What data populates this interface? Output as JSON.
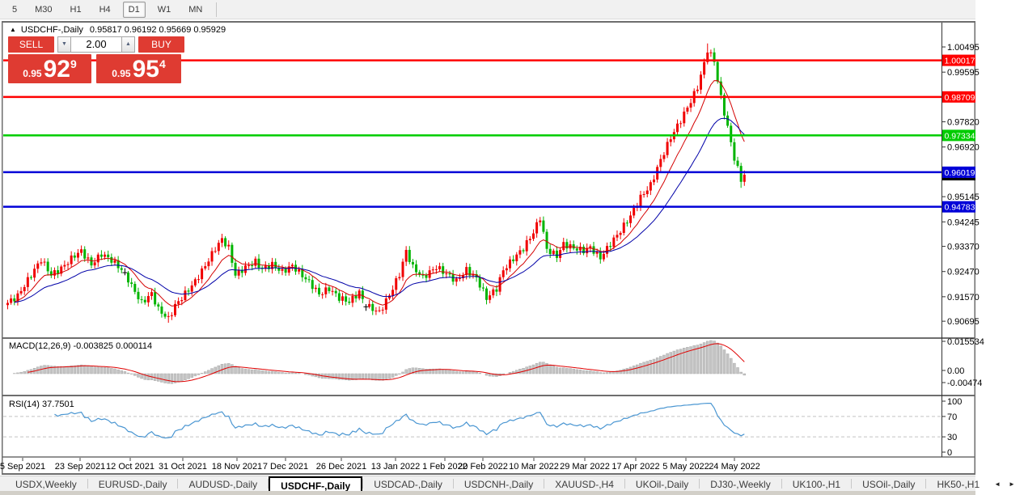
{
  "toolbar": {
    "timeframes": [
      "5",
      "M30",
      "H1",
      "H4",
      "D1",
      "W1",
      "MN"
    ],
    "active": "D1"
  },
  "chart": {
    "title": {
      "arrow": "▲",
      "symbol": "USDCHF-,Daily",
      "ohlc": "0.95817 0.96192 0.95669 0.95929"
    },
    "trade_panel": {
      "sell_label": "SELL",
      "buy_label": "BUY",
      "volume": "2.00",
      "spin_down_icon": "▼",
      "spin_up_icon": "▲",
      "sell_price": {
        "prefix": "0.95",
        "big": "92",
        "sup": "9"
      },
      "buy_price": {
        "prefix": "0.95",
        "big": "95",
        "sup": "4"
      }
    },
    "price_axis": {
      "ticks": [
        {
          "label": "1.00495",
          "value": 1.00495
        },
        {
          "label": "0.99595",
          "value": 0.99595
        },
        {
          "label": "0.97820",
          "value": 0.9782
        },
        {
          "label": "0.96920",
          "value": 0.9692
        },
        {
          "label": "0.95145",
          "value": 0.95145
        },
        {
          "label": "0.94245",
          "value": 0.94245
        },
        {
          "label": "0.93370",
          "value": 0.9337
        },
        {
          "label": "0.92470",
          "value": 0.9247
        },
        {
          "label": "0.91570",
          "value": 0.9157
        },
        {
          "label": "0.90695",
          "value": 0.90695
        }
      ]
    },
    "levels": [
      {
        "label": "1.00017",
        "value": 1.00017,
        "color": "#ff0000"
      },
      {
        "label": "0.98709",
        "value": 0.98709,
        "color": "#ff0000"
      },
      {
        "label": "0.97334",
        "value": 0.97334,
        "color": "#00cc00"
      },
      {
        "label": "0.96019",
        "value": 0.96019,
        "color": "#0000d8"
      },
      {
        "label": "0.94783",
        "value": 0.94783,
        "color": "#0000d8"
      }
    ],
    "bid_label": {
      "label": "0.95929",
      "value": 0.95929,
      "color": "#000000"
    },
    "series": {
      "type": "candlestick",
      "bar_count": 221,
      "last_close": 0.95929,
      "jitter": 0.0011,
      "close_keypoints": [
        [
          0,
          0.9135
        ],
        [
          3,
          0.916
        ],
        [
          7,
          0.9235
        ],
        [
          10,
          0.929
        ],
        [
          13,
          0.9235
        ],
        [
          16,
          0.9258
        ],
        [
          20,
          0.9305
        ],
        [
          22,
          0.932
        ],
        [
          25,
          0.9272
        ],
        [
          28,
          0.931
        ],
        [
          31,
          0.9288
        ],
        [
          35,
          0.9243
        ],
        [
          37,
          0.9195
        ],
        [
          40,
          0.9135
        ],
        [
          43,
          0.9168
        ],
        [
          45,
          0.9112
        ],
        [
          48,
          0.9078
        ],
        [
          50,
          0.9125
        ],
        [
          53,
          0.9168
        ],
        [
          56,
          0.9212
        ],
        [
          59,
          0.9268
        ],
        [
          62,
          0.933
        ],
        [
          64,
          0.9362
        ],
        [
          66,
          0.9332
        ],
        [
          68,
          0.9235
        ],
        [
          71,
          0.9262
        ],
        [
          74,
          0.9282
        ],
        [
          76,
          0.9256
        ],
        [
          79,
          0.9272
        ],
        [
          82,
          0.9246
        ],
        [
          85,
          0.9268
        ],
        [
          88,
          0.9233
        ],
        [
          91,
          0.9196
        ],
        [
          93,
          0.9166
        ],
        [
          96,
          0.9186
        ],
        [
          99,
          0.9153
        ],
        [
          102,
          0.9139
        ],
        [
          105,
          0.9173
        ],
        [
          107,
          0.9121
        ],
        [
          108,
          0.912
        ],
        [
          111,
          0.9101
        ],
        [
          114,
          0.9163
        ],
        [
          117,
          0.9237
        ],
        [
          119,
          0.932
        ],
        [
          121,
          0.9262
        ],
        [
          124,
          0.9226
        ],
        [
          128,
          0.9263
        ],
        [
          131,
          0.9239
        ],
        [
          134,
          0.9213
        ],
        [
          137,
          0.9253
        ],
        [
          140,
          0.9223
        ],
        [
          143,
          0.9152
        ],
        [
          146,
          0.9186
        ],
        [
          148,
          0.9252
        ],
        [
          151,
          0.9293
        ],
        [
          154,
          0.933
        ],
        [
          157,
          0.9387
        ],
        [
          159,
          0.944
        ],
        [
          161,
          0.9326
        ],
        [
          164,
          0.9303
        ],
        [
          166,
          0.9345
        ],
        [
          169,
          0.9331
        ],
        [
          172,
          0.9322
        ],
        [
          174,
          0.9333
        ],
        [
          177,
          0.9296
        ],
        [
          180,
          0.9346
        ],
        [
          183,
          0.9393
        ],
        [
          186,
          0.9446
        ],
        [
          189,
          0.9512
        ],
        [
          192,
          0.9556
        ],
        [
          195,
          0.9646
        ],
        [
          198,
          0.9726
        ],
        [
          201,
          0.9788
        ],
        [
          204,
          0.9856
        ],
        [
          206,
          0.9906
        ],
        [
          208,
          0.999
        ],
        [
          209,
          1.004
        ],
        [
          211,
          1.0
        ],
        [
          212,
          0.993
        ],
        [
          213,
          0.9868
        ],
        [
          215,
          0.9762
        ],
        [
          217,
          0.9652
        ],
        [
          219,
          0.9575
        ],
        [
          220,
          0.95929
        ]
      ],
      "doji_indices": [
        35,
        107
      ],
      "wick_overrides": {
        "48": {
          "low": 0.9064
        },
        "209": {
          "high": 1.0062
        },
        "219": {
          "low": 0.9546
        }
      },
      "moving_averages": [
        {
          "name": "fast-ma",
          "period": 10,
          "color": "#d40000"
        },
        {
          "name": "slow-ma",
          "period": 25,
          "color": "#0000a8"
        }
      ]
    },
    "date_axis": {
      "labels": [
        {
          "text": "5 Sep 2021",
          "x": 28
        },
        {
          "text": "23 Sep 2021",
          "x": 99
        },
        {
          "text": "12 Oct 2021",
          "x": 161
        },
        {
          "text": "31 Oct 2021",
          "x": 226
        },
        {
          "text": "18 Nov 2021",
          "x": 293
        },
        {
          "text": "7 Dec 2021",
          "x": 353
        },
        {
          "text": "26 Dec 2021",
          "x": 422
        },
        {
          "text": "13 Jan 2022",
          "x": 489
        },
        {
          "text": "1 Feb 2022",
          "x": 550
        },
        {
          "text": "20 Feb 2022",
          "x": 597
        },
        {
          "text": "10 Mar 2022",
          "x": 660
        },
        {
          "text": "29 Mar 2022",
          "x": 723
        },
        {
          "text": "17 Apr 2022",
          "x": 786
        },
        {
          "text": "5 May 2022",
          "x": 848
        },
        {
          "text": "24 May 2022",
          "x": 908
        }
      ]
    },
    "indicators": {
      "macd": {
        "label": "MACD(12,26,9) -0.003825 0.000114",
        "fast": 12,
        "slow": 26,
        "signal": 9,
        "axis_labels": [
          "0.015534",
          "0.00",
          "-0.00474"
        ],
        "hist_color": "#c4c4c4",
        "hist_border": "#aaaaaa",
        "signal_color": "#e00000"
      },
      "rsi": {
        "label": "RSI(14) 37.7501",
        "period": 14,
        "axis_labels": [
          "100",
          "70",
          "30",
          "0"
        ],
        "level_values": [
          70,
          30
        ],
        "line_color": "#4a96d2",
        "level_color": "#c4c4c4"
      }
    },
    "colors": {
      "bull": "#f00000",
      "bear": "#00b400",
      "doji": "#000000",
      "background": "#ffffff",
      "frame": "#6e6e6e",
      "axis_text": "#000000"
    }
  },
  "tabs": {
    "items": [
      "USDX,Weekly",
      "EURUSD-,Daily",
      "AUDUSD-,Daily",
      "USDCHF-,Daily",
      "USDCAD-,Daily",
      "USDCNH-,Daily",
      "XAUUSD-,H4",
      "UKOil-,Daily",
      "DJ30-,Weekly",
      "UK100-,H1",
      "USOil-,Daily",
      "HK50-,H1"
    ],
    "active_index": 3,
    "scroll_left_icon": "◄",
    "scroll_right_icon": "►"
  }
}
